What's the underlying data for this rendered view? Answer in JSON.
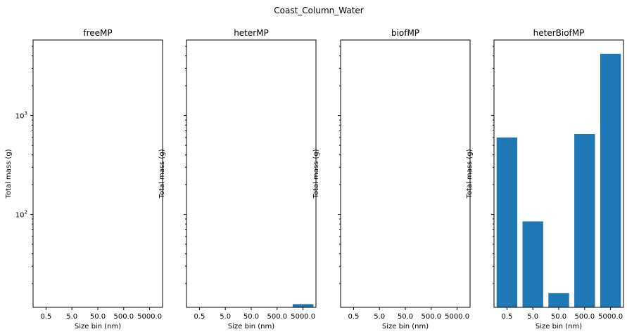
{
  "figure": {
    "suptitle": "Coast_Column_Water",
    "bar_color": "#1f77b4"
  },
  "chart_data": [
    {
      "type": "bar",
      "title": "freeMP",
      "categories": [
        "0.5",
        "5.0",
        "50.0",
        "500.0",
        "5000.0"
      ],
      "values": [
        0,
        0,
        0,
        0,
        0
      ],
      "xlabel": "Size bin (nm)",
      "ylabel": "Total mass (g)",
      "yscale": "log",
      "ylim": [
        11.5,
        5800
      ],
      "ytick_labels": [
        {
          "value": 100,
          "mantissa": "10",
          "exp": "2"
        },
        {
          "value": 1000,
          "mantissa": "10",
          "exp": "3"
        }
      ],
      "grid": false
    },
    {
      "type": "bar",
      "title": "heterMP",
      "categories": [
        "0.5",
        "5.0",
        "50.0",
        "500.0",
        "5000.0"
      ],
      "values": [
        0,
        0,
        0,
        0,
        12.4
      ],
      "xlabel": "Size bin (nm)",
      "ylabel": "Total mass (g)",
      "yscale": "log",
      "ylim": [
        11.5,
        5800
      ],
      "ytick_labels": [],
      "grid": false
    },
    {
      "type": "bar",
      "title": "biofMP",
      "categories": [
        "0.5",
        "5.0",
        "50.0",
        "500.0",
        "5000.0"
      ],
      "values": [
        0,
        0,
        0,
        0,
        0
      ],
      "xlabel": "Size bin (nm)",
      "ylabel": "Total mass (g)",
      "yscale": "log",
      "ylim": [
        11.5,
        5800
      ],
      "ytick_labels": [],
      "grid": false
    },
    {
      "type": "bar",
      "title": "heterBiofMP",
      "categories": [
        "0.5",
        "5.0",
        "50.0",
        "500.0",
        "5000.0"
      ],
      "values": [
        600,
        85,
        16,
        650,
        4200
      ],
      "xlabel": "Size bin (nm)",
      "ylabel": "Total mass (g)",
      "yscale": "log",
      "ylim": [
        11.5,
        5800
      ],
      "ytick_labels": [],
      "grid": false
    }
  ]
}
